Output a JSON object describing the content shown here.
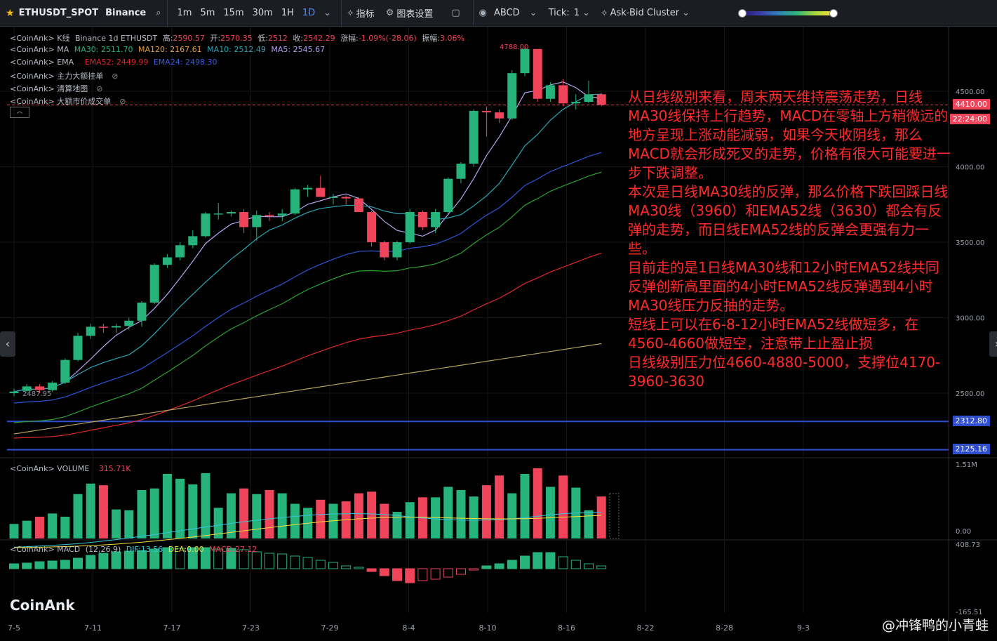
{
  "toolbar": {
    "symbol": "ETHUSDT_SPOT",
    "exchange": "Binance",
    "intervals": [
      "1m",
      "5m",
      "15m",
      "30m",
      "1H",
      "1D"
    ],
    "active_interval": "1D",
    "indicators_label": "指标",
    "settings_label": "图表设置",
    "drawing_label": "ABCD",
    "tick_label": "Tick:",
    "tick_value": "1",
    "cluster_label": "Ask-Bid Cluster"
  },
  "legend": {
    "kline": {
      "prefix": "<CoinAnk> K线",
      "source": "Binance 1d ETHUSDT",
      "high_label": "高:",
      "high": "2590.57",
      "open_label": "开:",
      "open": "2570.35",
      "low_label": "低:",
      "low": "2512",
      "close_label": "收:",
      "close": "2542.29",
      "change_label": "涨幅:",
      "change": "-1.09%(-28.06)",
      "amp_label": "振幅:",
      "amp": "3.06%"
    },
    "ma": {
      "prefix": "<CoinAnk> MA",
      "ma30": "MA30: 2511.70",
      "ma120": "MA120: 2167.61",
      "ma10": "MA10: 2512.49",
      "ma5": "MA5: 2545.67"
    },
    "ema": {
      "prefix": "<CoinAnk> EMA",
      "ema52": "EMA52: 2449.99",
      "ema24": "EMA24: 2498.30"
    },
    "layer1": "<CoinAnk> 主力大额挂单",
    "layer2": "<CoinAnk> 清算地图",
    "layer3": "<CoinAnk> 大额市价成交单",
    "volume": {
      "prefix": "<CoinAnk> VOLUME",
      "value": "315.71K"
    },
    "macd": {
      "prefix": "<CoinAnk> MACD",
      "params": "(12,26,9)",
      "dif": "DIF:13.56",
      "dea": "DEA:0.00",
      "macd": "MACD:27.12"
    }
  },
  "price_axis": {
    "ticks": [
      "4500.00",
      "4000.00",
      "3500.00",
      "3000.00",
      "2500.00"
    ],
    "current_price": "4410.00",
    "countdown": "22:24:00",
    "line1": "2312.80",
    "line2": "2125.16",
    "high_marker": "4788.00",
    "low_marker": "2487.95",
    "vol_top": "1.51M",
    "vol_bottom": "0.00",
    "macd_top": "408.73",
    "macd_bottom": "-165.51"
  },
  "date_axis": [
    "7-5",
    "7-11",
    "7-17",
    "7-23",
    "7-29",
    "8-4",
    "8-10",
    "8-16",
    "8-22",
    "8-28",
    "9-3"
  ],
  "annotation": "从日线级别来看，周末两天维持震荡走势，日线MA30线保持上行趋势，MACD在零轴上方稍微远的地方呈现上涨动能减弱，如果今天收阴线，那么MACD就会形成死叉的走势，价格有很大可能要进一步下跌调整。\n本次是日线MA30线的反弹，那么价格下跌回踩日线MA30线（3960）和EMA52线（3630）都会有反弹的走势，而日线EMA52线的反弹会更强有力一些。\n目前走的是1日线MA30线和12小时EMA52线共同反弹创新高里面的4小时EMA52线反弹遇到4小时MA30线压力反抽的走势。\n短线上可以在6-8-12小时EMA52线做短多，在4560-4660做短空，注意带上止盈止损\n日线级别压力位4660-4880-5000，支撑位4170-3960-3630",
  "logo": "CoinAnk",
  "watermark": "@冲锋鸭的小青蛙",
  "colors": {
    "up": "#26b37c",
    "down": "#f0445a",
    "blue_line": "#2f4fd0",
    "ma5": "#b7a4f0",
    "ma10": "#2aa6b6",
    "ma30": "#2b55d8",
    "ema52": "#e02828",
    "ema24": "#2aa12f",
    "ma120": "#b3a15a"
  },
  "chart_data": {
    "type": "candlestick",
    "candles": [
      [
        2500,
        2530,
        2480,
        2510
      ],
      [
        2515,
        2560,
        2505,
        2545
      ],
      [
        2545,
        2560,
        2500,
        2520
      ],
      [
        2520,
        2580,
        2510,
        2570
      ],
      [
        2570,
        2730,
        2560,
        2720
      ],
      [
        2720,
        2900,
        2710,
        2880
      ],
      [
        2880,
        2960,
        2860,
        2940
      ],
      [
        2940,
        2960,
        2900,
        2935
      ],
      [
        2935,
        2960,
        2900,
        2945
      ],
      [
        2945,
        3000,
        2920,
        2980
      ],
      [
        2980,
        3110,
        2940,
        3100
      ],
      [
        3100,
        3360,
        3090,
        3350
      ],
      [
        3350,
        3420,
        3330,
        3400
      ],
      [
        3400,
        3500,
        3380,
        3480
      ],
      [
        3480,
        3580,
        3460,
        3540
      ],
      [
        3540,
        3700,
        3530,
        3690
      ],
      [
        3690,
        3760,
        3650,
        3690
      ],
      [
        3690,
        3710,
        3670,
        3700
      ],
      [
        3700,
        3720,
        3560,
        3600
      ],
      [
        3600,
        3710,
        3510,
        3680
      ],
      [
        3680,
        3700,
        3640,
        3675
      ],
      [
        3675,
        3720,
        3640,
        3690
      ],
      [
        3690,
        3860,
        3680,
        3850
      ],
      [
        3850,
        3880,
        3800,
        3860
      ],
      [
        3860,
        3940,
        3800,
        3800
      ],
      [
        3800,
        3820,
        3750,
        3800
      ],
      [
        3800,
        3810,
        3750,
        3790
      ],
      [
        3790,
        3800,
        3700,
        3700
      ],
      [
        3700,
        3710,
        3470,
        3500
      ],
      [
        3500,
        3510,
        3380,
        3400
      ],
      [
        3400,
        3510,
        3380,
        3500
      ],
      [
        3500,
        3720,
        3490,
        3700
      ],
      [
        3700,
        3710,
        3580,
        3600
      ],
      [
        3600,
        3720,
        3560,
        3700
      ],
      [
        3700,
        3930,
        3690,
        3920
      ],
      [
        3920,
        4030,
        3890,
        4020
      ],
      [
        4020,
        4380,
        4000,
        4370
      ],
      [
        4370,
        4400,
        4200,
        4360
      ],
      [
        4360,
        4380,
        4290,
        4320
      ],
      [
        4320,
        4640,
        4310,
        4620
      ],
      [
        4620,
        4790,
        4600,
        4780
      ],
      [
        4780,
        4780,
        4430,
        4450
      ],
      [
        4450,
        4560,
        4430,
        4540
      ],
      [
        4540,
        4580,
        4400,
        4420
      ],
      [
        4420,
        4480,
        4380,
        4430
      ],
      [
        4430,
        4570,
        4420,
        4480
      ],
      [
        4480,
        4490,
        4400,
        4410
      ]
    ],
    "volumes": [
      0.18,
      0.22,
      0.27,
      0.31,
      0.27,
      0.55,
      0.68,
      0.66,
      0.36,
      0.35,
      0.6,
      0.62,
      0.8,
      0.74,
      0.67,
      0.81,
      0.38,
      0.56,
      0.62,
      0.55,
      0.6,
      0.56,
      0.43,
      0.38,
      0.48,
      0.43,
      0.46,
      0.56,
      0.58,
      0.43,
      0.33,
      0.45,
      0.51,
      0.51,
      0.64,
      0.6,
      0.52,
      0.66,
      0.78,
      0.56,
      0.8,
      0.87,
      0.64,
      0.78,
      0.63,
      0.35,
      0.52
    ],
    "macd_hist": [
      35,
      40,
      50,
      55,
      60,
      75,
      95,
      110,
      120,
      125,
      130,
      140,
      150,
      145,
      150,
      150,
      140,
      145,
      135,
      120,
      110,
      105,
      90,
      80,
      60,
      45,
      20,
      10,
      -20,
      -50,
      -85,
      -100,
      -85,
      -75,
      -60,
      -40,
      -10,
      20,
      35,
      60,
      90,
      115,
      115,
      85,
      60,
      35,
      20
    ],
    "ylim": [
      2300,
      4880
    ]
  }
}
